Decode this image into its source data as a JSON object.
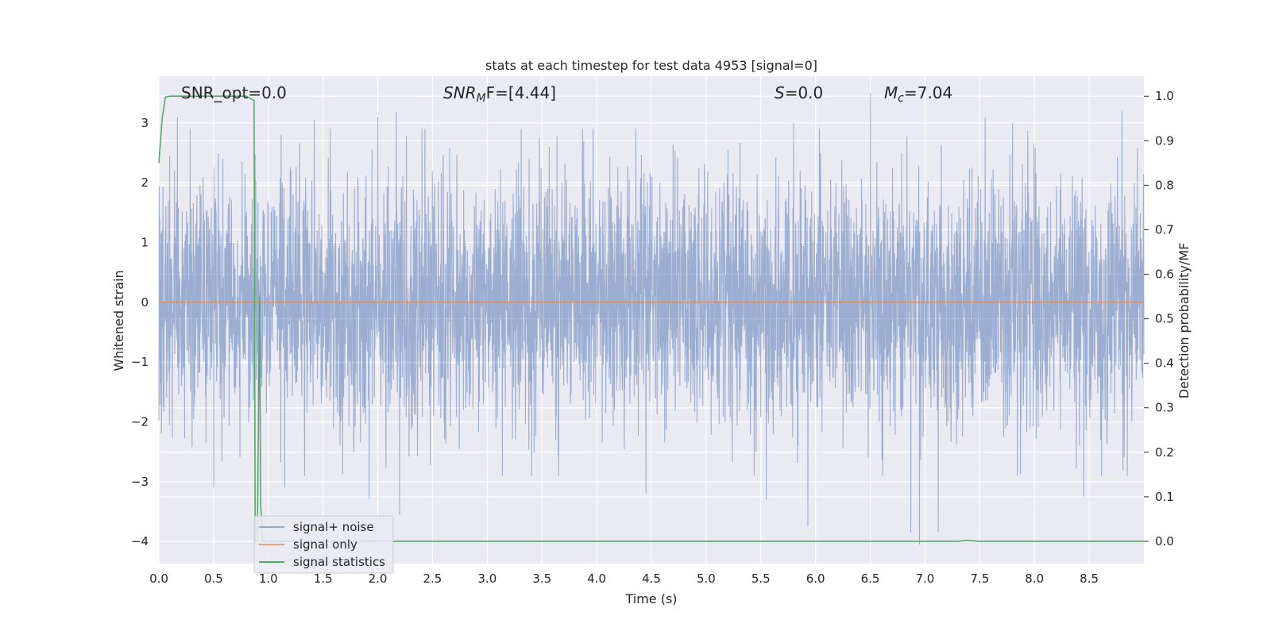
{
  "chart_data": {
    "type": "line",
    "title": "stats at each timestep for test data 4953 [signal=0]",
    "xlabel": "Time (s)",
    "ylabel": "Whitened strain",
    "ylabel_right": "Detection probability/MF",
    "xlim": [
      0,
      9.0
    ],
    "ylim": [
      -4.37,
      3.78
    ],
    "ylim_right": [
      -0.05,
      1.045
    ],
    "x_ticks": [
      "0.0",
      "0.5",
      "1.0",
      "1.5",
      "2.0",
      "2.5",
      "3.0",
      "3.5",
      "4.0",
      "4.5",
      "5.0",
      "5.5",
      "6.0",
      "6.5",
      "7.0",
      "7.5",
      "8.0",
      "8.5"
    ],
    "y_ticks": [
      "3",
      "2",
      "1",
      "0",
      "−1",
      "−2",
      "−3",
      "−4"
    ],
    "y_ticks_right": [
      "1.0",
      "0.9",
      "0.8",
      "0.7",
      "0.6",
      "0.5",
      "0.4",
      "0.3",
      "0.2",
      "0.1",
      "0.0"
    ],
    "grid": true,
    "legend_position": "lower-left",
    "colors": {
      "noise": "#4c72b0",
      "signal": "#dd8452",
      "stats": "#55a868",
      "background": "#eaeaf2"
    },
    "annotations": {
      "snr_opt": "SNR_opt=0.0",
      "snr_mf_sym": "SNR",
      "snr_mf_sub": "M",
      "snr_mf_rest": "F=[4.44]",
      "s_sym": "S",
      "s_rest": "=0.0",
      "mc_sym": "M",
      "mc_sub": "c",
      "mc_rest": "=7.04"
    },
    "series": [
      {
        "name": "signal+ noise",
        "axis": "left",
        "style": "noise",
        "samples": 4096,
        "x_range": [
          0,
          9.0
        ],
        "typical_range": [
          -2.0,
          2.0
        ],
        "peaks": [
          [
            0.17,
            3.1
          ],
          [
            0.5,
            -3.1
          ],
          [
            1.15,
            -3.1
          ],
          [
            1.42,
            3.05
          ],
          [
            1.92,
            -3.3
          ],
          [
            2.0,
            3.1
          ],
          [
            2.17,
            3.18
          ],
          [
            2.2,
            -3.55
          ],
          [
            4.45,
            -3.2
          ],
          [
            5.55,
            -3.3
          ],
          [
            5.8,
            3.0
          ],
          [
            5.93,
            -3.75
          ],
          [
            6.5,
            3.5
          ],
          [
            6.87,
            -3.85
          ],
          [
            6.95,
            -4.05
          ],
          [
            7.12,
            -3.85
          ],
          [
            7.55,
            3.1
          ],
          [
            7.8,
            3.0
          ],
          [
            8.45,
            -3.25
          ],
          [
            8.8,
            3.2
          ]
        ]
      },
      {
        "name": "signal only",
        "axis": "left",
        "style": "signal",
        "points": [
          [
            0,
            0.0
          ],
          [
            9.0,
            0.0
          ]
        ]
      },
      {
        "name": "signal statistics",
        "axis": "right",
        "style": "stats",
        "points": [
          [
            0.0,
            0.85
          ],
          [
            0.03,
            0.95
          ],
          [
            0.06,
            0.998
          ],
          [
            0.1,
            1.0
          ],
          [
            0.8,
            1.0
          ],
          [
            0.87,
            0.99
          ],
          [
            0.88,
            0.0
          ],
          [
            0.9,
            0.0
          ],
          [
            0.92,
            0.55
          ],
          [
            0.93,
            0.08
          ],
          [
            0.95,
            0.0
          ],
          [
            7.3,
            0.0
          ],
          [
            7.38,
            0.002
          ],
          [
            7.5,
            0.0
          ],
          [
            9.0,
            0.0
          ]
        ]
      }
    ]
  }
}
